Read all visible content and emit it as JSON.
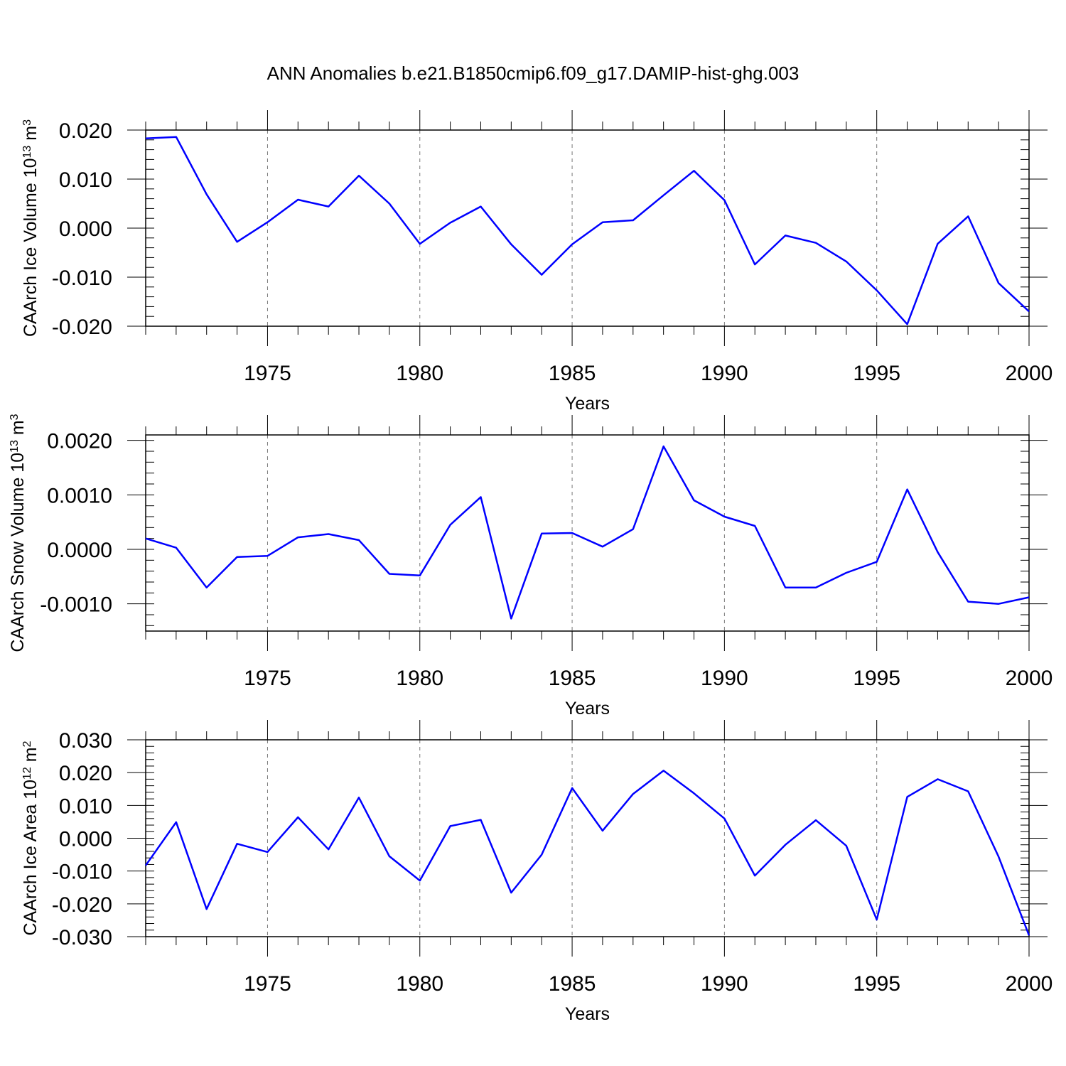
{
  "figure": {
    "title": "ANN Anomalies b.e21.B1850cmip6.f09_g17.DAMIP-hist-ghg.003",
    "line_color": "#0000ff"
  },
  "chart_data": [
    {
      "type": "line",
      "ylabel": "CAArch Ice Volume 10",
      "ylabel_exponent": "13",
      "ylabel_unit": "m",
      "ylabel_unit_exponent": "3",
      "xlabel": "Years",
      "xlim": [
        1971,
        2000
      ],
      "ylim": [
        -0.02,
        0.02
      ],
      "x_ticks": [
        1975,
        1980,
        1985,
        1990,
        1995,
        2000
      ],
      "x_tick_labels": [
        "1975",
        "1980",
        "1985",
        "1990",
        "1995",
        "2000"
      ],
      "y_ticks": [
        -0.02,
        -0.01,
        0.0,
        0.01,
        0.02
      ],
      "y_tick_labels": [
        "-0.020",
        "-0.010",
        "0.000",
        "0.010",
        "0.020"
      ],
      "y_minor_step": 0.002,
      "grid": "dashed vertical lines at major x ticks",
      "series": [
        {
          "x": [
            1971,
            1972,
            1973,
            1974,
            1975,
            1976,
            1977,
            1978,
            1979,
            1980,
            1981,
            1982,
            1983,
            1984,
            1985,
            1986,
            1987,
            1988,
            1989,
            1990,
            1991,
            1992,
            1993,
            1994,
            1995,
            1996,
            1997,
            1998,
            1999,
            2000
          ],
          "values": [
            0.0183,
            0.0186,
            0.0069,
            -0.0028,
            0.0012,
            0.0058,
            0.0044,
            0.0107,
            0.005,
            -0.0032,
            0.0011,
            0.0044,
            -0.0033,
            -0.0095,
            -0.0033,
            0.0012,
            0.0016,
            0.0067,
            0.0117,
            0.0057,
            -0.0074,
            -0.0015,
            -0.003,
            -0.0068,
            -0.0127,
            -0.0196,
            -0.0032,
            0.0024,
            -0.0112,
            -0.017
          ]
        }
      ]
    },
    {
      "type": "line",
      "ylabel": "CAArch Snow Volume 10",
      "ylabel_exponent": "13",
      "ylabel_unit": "m",
      "ylabel_unit_exponent": "3",
      "xlabel": "Years",
      "xlim": [
        1971,
        2000
      ],
      "ylim": [
        -0.0015,
        0.0021
      ],
      "x_ticks": [
        1975,
        1980,
        1985,
        1990,
        1995,
        2000
      ],
      "x_tick_labels": [
        "1975",
        "1980",
        "1985",
        "1990",
        "1995",
        "2000"
      ],
      "y_ticks": [
        -0.001,
        0.0,
        0.001,
        0.002
      ],
      "y_tick_labels": [
        "-0.0010",
        "0.0000",
        "0.0010",
        "0.0020"
      ],
      "y_minor_step": 0.0002,
      "grid": "dashed vertical lines at major x ticks",
      "series": [
        {
          "x": [
            1971,
            1972,
            1973,
            1974,
            1975,
            1976,
            1977,
            1978,
            1979,
            1980,
            1981,
            1982,
            1983,
            1984,
            1985,
            1986,
            1987,
            1988,
            1989,
            1990,
            1991,
            1992,
            1993,
            1994,
            1995,
            1996,
            1997,
            1998,
            1999,
            2000
          ],
          "values": [
            0.0002,
            3e-05,
            -0.0007,
            -0.00014,
            -0.00012,
            0.00022,
            0.00028,
            0.00017,
            -0.00045,
            -0.00048,
            0.00045,
            0.00096,
            -0.00127,
            0.00029,
            0.0003,
            5e-05,
            0.00037,
            0.00189,
            0.0009,
            0.0006,
            0.00043,
            -0.0007,
            -0.0007,
            -0.00043,
            -0.00023,
            0.0011,
            -5e-05,
            -0.00096,
            -0.001,
            -0.00088
          ]
        }
      ]
    },
    {
      "type": "line",
      "ylabel": "CAArch Ice Area 10",
      "ylabel_exponent": "12",
      "ylabel_unit": "m",
      "ylabel_unit_exponent": "2",
      "xlabel": "Years",
      "xlim": [
        1971,
        2000
      ],
      "ylim": [
        -0.03,
        0.03
      ],
      "x_ticks": [
        1975,
        1980,
        1985,
        1990,
        1995,
        2000
      ],
      "x_tick_labels": [
        "1975",
        "1980",
        "1985",
        "1990",
        "1995",
        "2000"
      ],
      "y_ticks": [
        -0.03,
        -0.02,
        -0.01,
        0.0,
        0.01,
        0.02,
        0.03
      ],
      "y_tick_labels": [
        "-0.030",
        "-0.020",
        "-0.010",
        "0.000",
        "0.010",
        "0.020",
        "0.030"
      ],
      "y_minor_step": 0.002,
      "grid": "dashed vertical lines at major x ticks",
      "series": [
        {
          "x": [
            1971,
            1972,
            1973,
            1974,
            1975,
            1976,
            1977,
            1978,
            1979,
            1980,
            1981,
            1982,
            1983,
            1984,
            1985,
            1986,
            1987,
            1988,
            1989,
            1990,
            1991,
            1992,
            1993,
            1994,
            1995,
            1996,
            1997,
            1998,
            1999,
            2000
          ],
          "values": [
            -0.0083,
            0.0049,
            -0.0216,
            -0.0017,
            -0.0042,
            0.0064,
            -0.0034,
            0.0124,
            -0.0055,
            -0.0129,
            0.0037,
            0.0056,
            -0.0166,
            -0.005,
            0.0153,
            0.0023,
            0.0135,
            0.0206,
            0.0137,
            0.006,
            -0.0114,
            -0.002,
            0.0055,
            -0.0023,
            -0.0248,
            0.0126,
            0.018,
            0.0143,
            -0.0056,
            -0.0296
          ]
        }
      ]
    }
  ]
}
